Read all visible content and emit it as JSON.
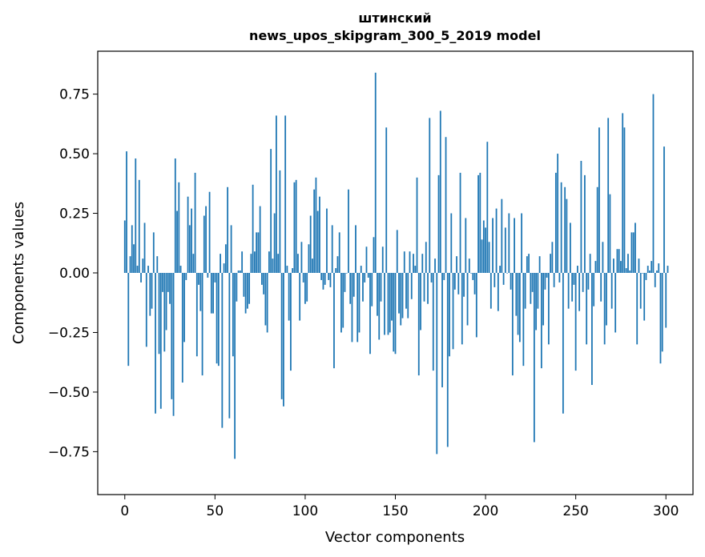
{
  "chart_data": {
    "type": "bar",
    "title": "штинский",
    "subtitle": "news_upos_skipgram_300_5_2019 model",
    "xlabel": "Vector components",
    "ylabel": "Components values",
    "xlim": [
      -15,
      315
    ],
    "ylim": [
      -0.93,
      0.93
    ],
    "xticks": [
      0,
      50,
      100,
      150,
      200,
      250,
      300
    ],
    "yticks": [
      -0.75,
      -0.5,
      -0.25,
      0.0,
      0.25,
      0.5,
      0.75
    ],
    "ytick_labels": [
      "−0.75",
      "−0.50",
      "−0.25",
      "0.00",
      "0.25",
      "0.50",
      "0.75"
    ],
    "grid": false,
    "color": "#1f77b4",
    "x_start": 0,
    "values": [
      0.22,
      0.51,
      -0.39,
      0.07,
      0.2,
      0.12,
      0.48,
      0.03,
      0.39,
      -0.04,
      0.06,
      0.21,
      -0.31,
      0.03,
      -0.18,
      -0.15,
      0.17,
      -0.59,
      0.07,
      -0.34,
      -0.57,
      -0.08,
      -0.33,
      -0.24,
      -0.08,
      -0.13,
      -0.53,
      -0.6,
      0.48,
      0.26,
      0.38,
      0.03,
      -0.46,
      -0.29,
      -0.03,
      0.32,
      0.2,
      0.27,
      0.08,
      0.42,
      -0.35,
      -0.05,
      -0.16,
      -0.43,
      0.24,
      0.28,
      -0.02,
      0.34,
      -0.17,
      -0.17,
      -0.04,
      -0.38,
      -0.39,
      0.08,
      -0.65,
      0.04,
      0.12,
      0.36,
      -0.61,
      0.2,
      -0.35,
      -0.78,
      -0.12,
      0.01,
      0.01,
      0.09,
      -0.1,
      -0.17,
      -0.15,
      -0.13,
      0.08,
      0.37,
      0.09,
      0.17,
      0.17,
      0.28,
      -0.05,
      -0.09,
      -0.22,
      -0.25,
      0.09,
      0.52,
      0.06,
      0.25,
      0.66,
      0.08,
      0.43,
      -0.53,
      -0.56,
      0.66,
      0.03,
      -0.2,
      -0.41,
      0.02,
      0.38,
      0.39,
      0.08,
      -0.2,
      0.13,
      -0.04,
      -0.13,
      -0.12,
      0.12,
      0.24,
      0.06,
      0.35,
      0.4,
      0.26,
      0.32,
      -0.03,
      -0.07,
      -0.05,
      0.27,
      -0.03,
      -0.06,
      0.2,
      -0.4,
      0.02,
      0.07,
      0.17,
      -0.25,
      -0.23,
      -0.08,
      0.0,
      0.35,
      -0.13,
      -0.29,
      -0.1,
      0.2,
      -0.29,
      -0.25,
      0.03,
      -0.12,
      -0.04,
      0.11,
      -0.02,
      -0.34,
      -0.14,
      0.15,
      0.84,
      -0.18,
      -0.28,
      -0.12,
      0.11,
      -0.26,
      0.61,
      -0.26,
      -0.25,
      -0.2,
      -0.33,
      -0.34,
      0.18,
      -0.17,
      -0.22,
      -0.19,
      0.09,
      -0.15,
      -0.19,
      0.09,
      -0.11,
      0.08,
      0.03,
      0.4,
      -0.43,
      -0.24,
      0.08,
      -0.12,
      0.13,
      -0.13,
      0.65,
      -0.04,
      -0.41,
      0.06,
      -0.76,
      0.41,
      0.68,
      -0.48,
      -0.03,
      0.57,
      -0.73,
      -0.35,
      0.25,
      -0.32,
      -0.07,
      0.07,
      -0.09,
      0.42,
      -0.3,
      -0.1,
      0.23,
      -0.22,
      0.06,
      0.0,
      -0.03,
      -0.09,
      -0.27,
      0.41,
      0.42,
      0.14,
      0.22,
      0.19,
      0.55,
      0.13,
      -0.15,
      0.23,
      -0.06,
      0.27,
      -0.16,
      0.03,
      0.31,
      -0.05,
      0.19,
      0.0,
      0.25,
      -0.07,
      -0.43,
      0.23,
      -0.18,
      -0.26,
      -0.29,
      0.25,
      -0.39,
      -0.15,
      0.07,
      0.08,
      -0.13,
      -0.08,
      -0.71,
      -0.24,
      -0.15,
      0.07,
      -0.4,
      -0.22,
      -0.07,
      -0.02,
      -0.3,
      0.08,
      0.13,
      -0.06,
      0.42,
      0.5,
      -0.04,
      0.38,
      -0.59,
      0.36,
      0.31,
      -0.15,
      0.21,
      -0.12,
      -0.05,
      -0.41,
      0.03,
      -0.16,
      0.47,
      -0.08,
      0.41,
      -0.3,
      -0.07,
      0.08,
      -0.47,
      -0.14,
      0.05,
      0.36,
      0.61,
      -0.12,
      0.13,
      -0.3,
      -0.22,
      0.65,
      0.33,
      -0.15,
      0.06,
      -0.25,
      0.1,
      0.1,
      0.05,
      0.67,
      0.61,
      0.02,
      0.08,
      0.01,
      0.17,
      0.17,
      0.21,
      -0.3,
      0.06,
      -0.15,
      0.0,
      -0.2,
      -0.03,
      0.03,
      0.01,
      0.05,
      0.75,
      -0.06,
      0.01,
      0.04,
      -0.38,
      -0.33,
      0.53,
      -0.23,
      0.03
    ]
  }
}
